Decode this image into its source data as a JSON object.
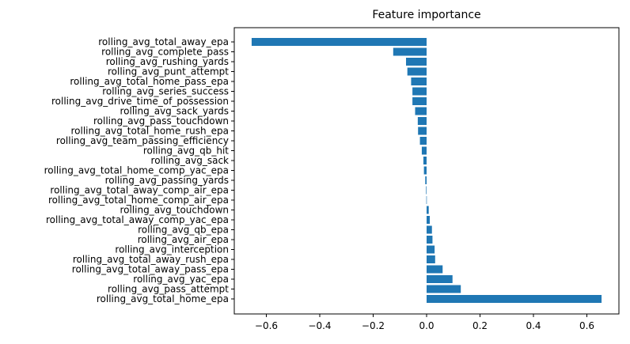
{
  "chart_data": {
    "type": "bar",
    "orientation": "horizontal",
    "title": "Feature importance",
    "xlabel": "",
    "ylabel": "",
    "xlim": [
      -0.72,
      0.72
    ],
    "x_ticks": [
      -0.6,
      -0.4,
      -0.2,
      0.0,
      0.2,
      0.4,
      0.6
    ],
    "x_tick_labels": [
      "−0.6",
      "−0.4",
      "−0.2",
      "0.0",
      "0.2",
      "0.4",
      "0.6"
    ],
    "grid": false,
    "bar_color": "#1f77b4",
    "categories": [
      "rolling_avg_total_away_epa",
      "rolling_avg_complete_pass",
      "rolling_avg_rushing_yards",
      "rolling_avg_punt_attempt",
      "rolling_avg_total_home_pass_epa",
      "rolling_avg_series_success",
      "rolling_avg_drive_time_of_possession",
      "rolling_avg_sack_yards",
      "rolling_avg_pass_touchdown",
      "rolling_avg_total_home_rush_epa",
      "rolling_avg_team_passing_efficiency",
      "rolling_avg_qb_hit",
      "rolling_avg_sack",
      "rolling_avg_total_home_comp_yac_epa",
      "rolling_avg_passing_yards",
      "rolling_avg_total_away_comp_air_epa",
      "rolling_avg_total_home_comp_air_epa",
      "rolling_avg_touchdown",
      "rolling_avg_total_away_comp_yac_epa",
      "rolling_avg_qb_epa",
      "rolling_avg_air_epa",
      "rolling_avg_interception",
      "rolling_avg_total_away_rush_epa",
      "rolling_avg_total_away_pass_epa",
      "rolling_avg_yac_epa",
      "rolling_avg_pass_attempt",
      "rolling_avg_total_home_epa"
    ],
    "values": [
      -0.655,
      -0.125,
      -0.077,
      -0.072,
      -0.058,
      -0.053,
      -0.053,
      -0.043,
      -0.033,
      -0.032,
      -0.025,
      -0.018,
      -0.012,
      -0.01,
      -0.005,
      -0.002,
      -0.001,
      0.008,
      0.012,
      0.02,
      0.022,
      0.03,
      0.032,
      0.06,
      0.097,
      0.128,
      0.655
    ]
  }
}
